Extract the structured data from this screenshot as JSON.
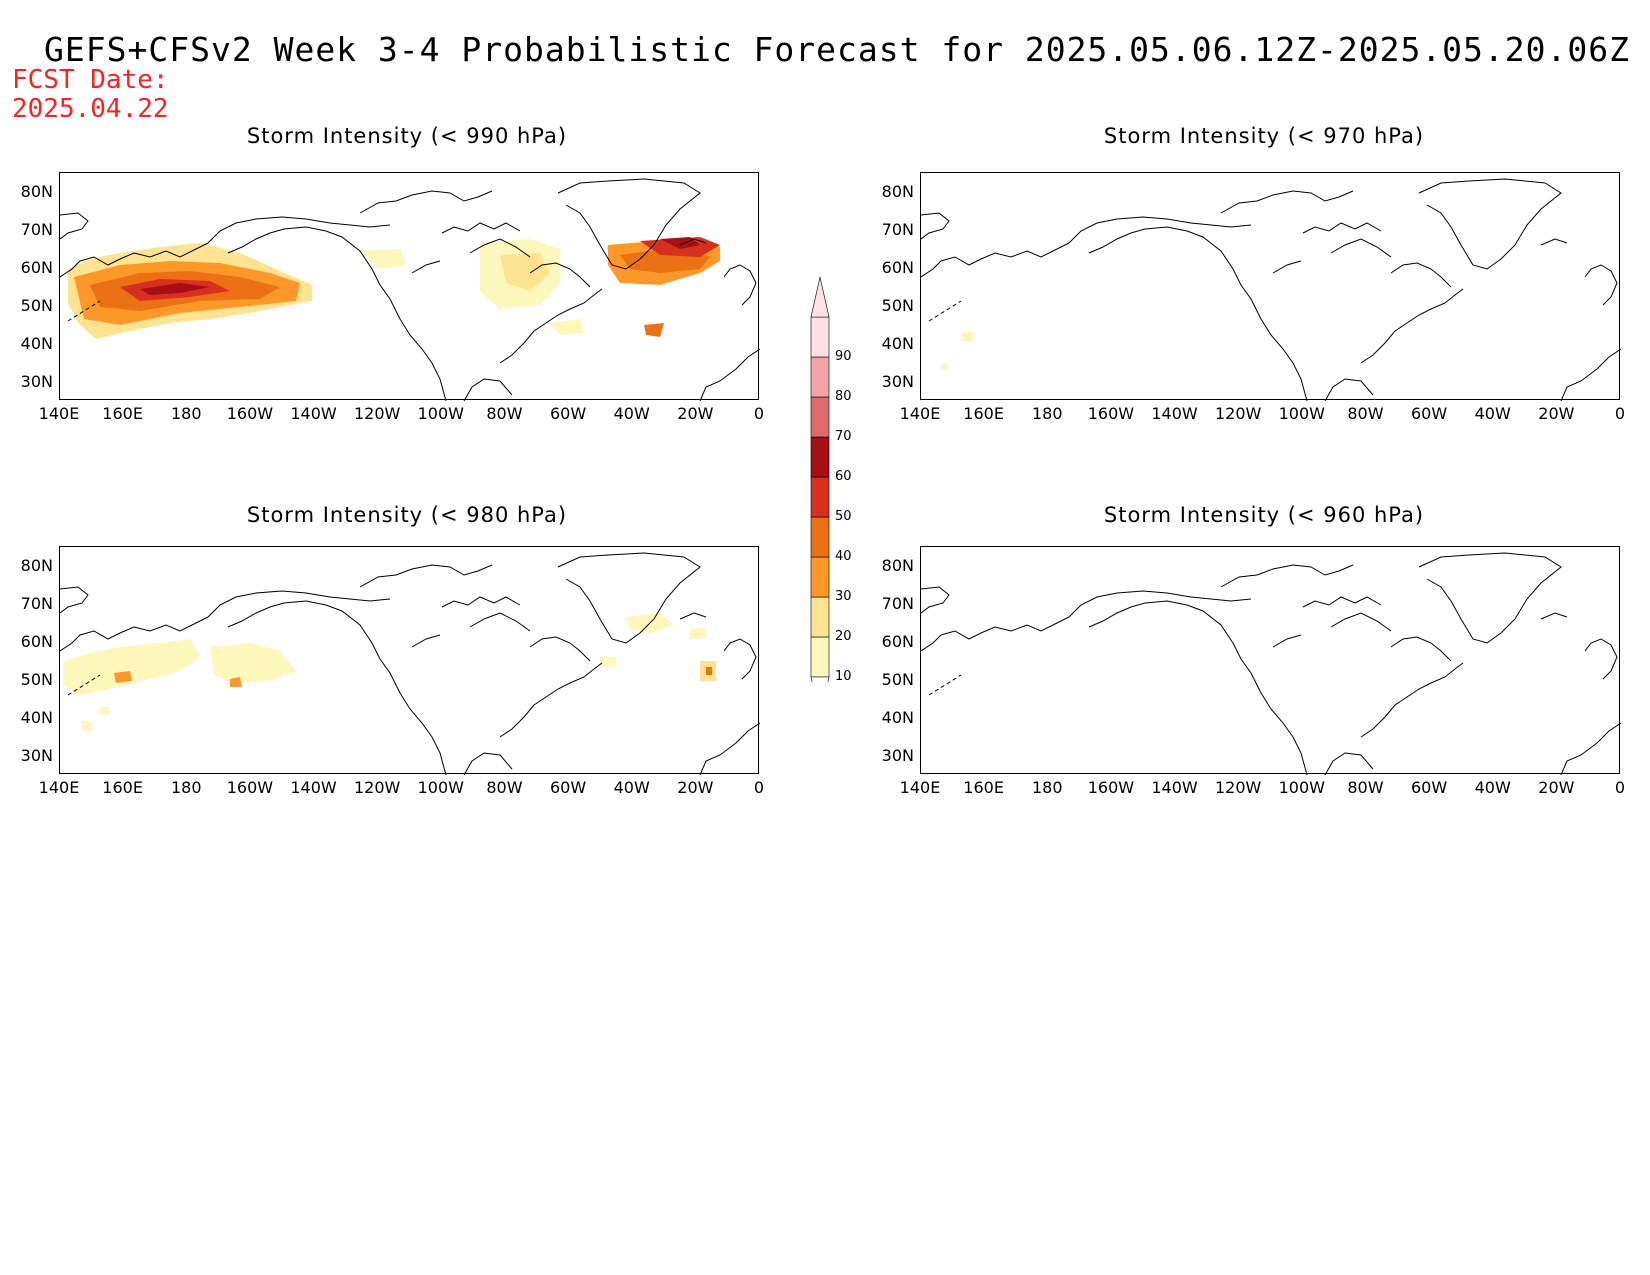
{
  "title": "GEFS+CFSv2 Week 3-4 Probabilistic Forecast for 2025.05.06.12Z-2025.05.20.06Z",
  "fcst_date": {
    "label": "FCST Date:",
    "value": "2025.04.22"
  },
  "panels": [
    {
      "title": "Storm Intensity (< 990 hPa)"
    },
    {
      "title": "Storm Intensity (< 970 hPa)"
    },
    {
      "title": "Storm Intensity (< 980 hPa)"
    },
    {
      "title": "Storm Intensity (< 960 hPa)"
    }
  ],
  "lat_labels": [
    "80N",
    "70N",
    "60N",
    "50N",
    "40N",
    "30N"
  ],
  "lon_labels": [
    "140E",
    "160E",
    "180",
    "160W",
    "140W",
    "120W",
    "100W",
    "80W",
    "60W",
    "40W",
    "20W",
    "0"
  ],
  "colorbar": {
    "levels": [
      "10",
      "20",
      "30",
      "40",
      "50",
      "60",
      "70",
      "80",
      "90"
    ],
    "colors": [
      "#fff7bc",
      "#fee391",
      "#fe9929",
      "#ec7014",
      "#d7301f",
      "#a50f15",
      "#de6a6a",
      "#f4a3a8",
      "#fde0e4"
    ]
  }
}
